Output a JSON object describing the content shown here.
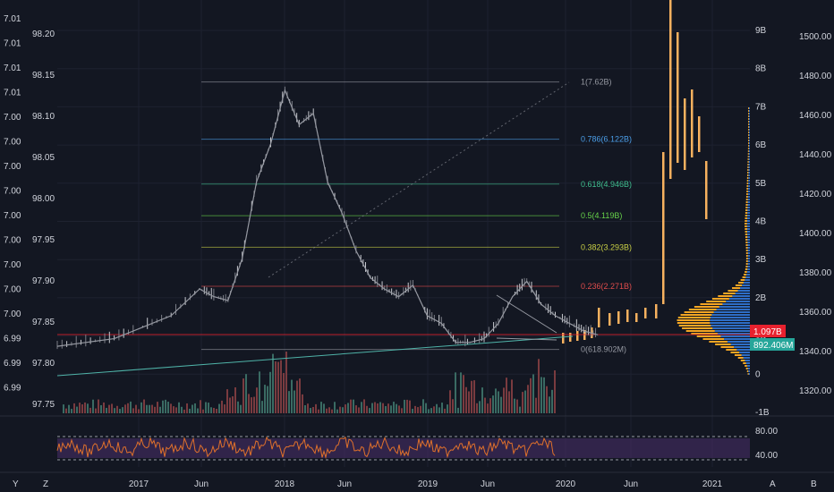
{
  "colors": {
    "background": "#131722",
    "grid": "#1e2230",
    "price_line": "#9598a1",
    "volume_up": "#3a6b63",
    "volume_down": "#7a3b3f",
    "rsi_line": "#e0712b",
    "rsi_band": "#4a2f6b",
    "projection": "#f7b15f",
    "vp_up": "#2e6ec7",
    "vp_down": "#f5a623",
    "last_price_badge": "#e8212e",
    "volume_badge": "#26a69a",
    "trendline": "#4fb3a8"
  },
  "left_axis_outer": {
    "ticks": [
      "7.01",
      "7.01",
      "7.01",
      "7.01",
      "7.00",
      "7.00",
      "7.00",
      "7.00",
      "7.00",
      "7.00",
      "7.00",
      "7.00",
      "7.00",
      "6.99",
      "6.99",
      "6.99"
    ]
  },
  "left_axis_inner": {
    "ticks": [
      "98.20",
      "98.15",
      "98.10",
      "98.05",
      "98.00",
      "97.95",
      "97.90",
      "97.85",
      "97.80",
      "97.75"
    ]
  },
  "right_axis_volume": {
    "ticks": [
      "9B",
      "8B",
      "7B",
      "6B",
      "5B",
      "4B",
      "3B",
      "2B",
      "1B",
      "0",
      "-1B"
    ]
  },
  "right_axis_price": {
    "ticks": [
      "1500.00",
      "1480.00",
      "1460.00",
      "1440.00",
      "1420.00",
      "1400.00",
      "1380.00",
      "1360.00",
      "1340.00",
      "1320.00"
    ]
  },
  "rsi_axis": {
    "ticks": [
      "80.00",
      "40.00"
    ]
  },
  "time_axis": {
    "labels": [
      "2017",
      "Jun",
      "2018",
      "Jun",
      "2019",
      "Jun",
      "2020",
      "Jun",
      "2021"
    ]
  },
  "bottom_bar": {
    "left_labels": [
      "Y",
      "Z"
    ],
    "right_labels": [
      "A",
      "B"
    ]
  },
  "badges": {
    "last_value": "1.097B",
    "volume_value": "892.406M"
  },
  "chart_data": {
    "type": "line",
    "title": "",
    "fib_levels": [
      {
        "label": "1(7.62B)",
        "color": "#9598a1"
      },
      {
        "label": "0.786(6.122B)",
        "color": "#4b9ee8"
      },
      {
        "label": "0.618(4.946B)",
        "color": "#3fbf8f"
      },
      {
        "label": "0.5(4.119B)",
        "color": "#67d34a"
      },
      {
        "label": "0.382(3.293B)",
        "color": "#c8cf45"
      },
      {
        "label": "0.236(2.271B)",
        "color": "#e04c4c"
      },
      {
        "label": "0(618.902M)",
        "color": "#9598a1"
      }
    ],
    "series": [
      {
        "x": [
          "2016-09",
          "2016-11",
          "2017-01",
          "2017-03",
          "2017-05",
          "2017-07",
          "2017-08",
          "2017-09",
          "2017-10",
          "2017-11",
          "2017-12",
          "2018-01",
          "2018-02",
          "2018-03",
          "2018-04",
          "2018-05",
          "2018-06",
          "2018-07",
          "2018-08",
          "2018-09",
          "2018-10",
          "2018-11",
          "2018-12",
          "2019-01",
          "2019-02",
          "2019-03",
          "2019-04",
          "2019-05",
          "2019-06",
          "2019-07",
          "2019-08",
          "2019-09",
          "2019-10",
          "2019-11"
        ],
        "values": [
          0.7,
          0.8,
          0.9,
          1.2,
          1.5,
          2.2,
          2.0,
          1.9,
          3.0,
          5.0,
          6.0,
          7.4,
          6.5,
          6.8,
          5.0,
          4.2,
          3.2,
          2.5,
          2.2,
          2.0,
          2.3,
          1.5,
          1.3,
          0.8,
          0.8,
          0.9,
          1.3,
          2.0,
          2.4,
          1.8,
          1.5,
          1.3,
          1.1,
          1.0
        ]
      }
    ],
    "volume_profile": "horizontal bars at right, concentrated near 1B-2B",
    "projection_bars": "rising vertical bars extending to 2021 above 9B"
  }
}
